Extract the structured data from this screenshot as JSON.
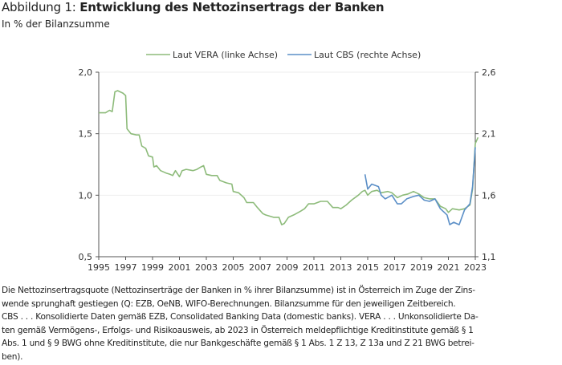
{
  "title": {
    "prefix": "Abbildung 1: ",
    "main": "Entwicklung des Nettozinsertrags der Banken"
  },
  "subtitle": "In % der Bilanzsumme",
  "chart_data": {
    "type": "line",
    "legend_position": "top",
    "grid": true,
    "x_ticks": [
      "1995",
      "1997",
      "1999",
      "2001",
      "2003",
      "2005",
      "2007",
      "2009",
      "2011",
      "2013",
      "2015",
      "2017",
      "2019",
      "2021",
      "2023"
    ],
    "xlim": [
      1995,
      2023
    ],
    "y_left": {
      "ylim": [
        0.5,
        2.0
      ],
      "ticks": [
        "0,5",
        "1,0",
        "1,5",
        "2,0"
      ]
    },
    "y_right": {
      "ylim": [
        1.1,
        2.6
      ],
      "ticks": [
        "1,1",
        "1,6",
        "2,1",
        "2,6"
      ]
    },
    "series": [
      {
        "name": "Laut VERA (linke Achse)",
        "axis": "left",
        "color": "#8dbb7a",
        "x": [
          1995.0,
          1995.5,
          1995.8,
          1996.0,
          1996.2,
          1996.4,
          1996.8,
          1997.0,
          1997.1,
          1997.4,
          1997.8,
          1998.0,
          1998.2,
          1998.5,
          1998.7,
          1999.0,
          1999.1,
          1999.3,
          1999.6,
          2000.0,
          2000.3,
          2000.5,
          2000.7,
          2001.0,
          2001.2,
          2001.5,
          2002.0,
          2002.3,
          2002.6,
          2002.8,
          2003.0,
          2003.4,
          2003.8,
          2004.0,
          2004.5,
          2004.9,
          2005.0,
          2005.4,
          2005.8,
          2006.0,
          2006.5,
          2006.8,
          2007.2,
          2007.4,
          2008.0,
          2008.4,
          2008.6,
          2008.8,
          2009.1,
          2009.5,
          2010.0,
          2010.3,
          2010.6,
          2011.0,
          2011.5,
          2012.0,
          2012.4,
          2012.8,
          2013.0,
          2013.4,
          2013.8,
          2014.3,
          2014.6,
          2014.8,
          2015.0,
          2015.3,
          2015.7,
          2016.0,
          2016.5,
          2016.8,
          2017.2,
          2017.6,
          2018.0,
          2018.4,
          2018.8,
          2019.2,
          2019.6,
          2020.0,
          2020.4,
          2020.8,
          2021.0,
          2021.3,
          2021.8,
          2022.2,
          2022.6,
          2022.8,
          2023.0,
          2023.2
        ],
        "values": [
          1.67,
          1.67,
          1.69,
          1.68,
          1.84,
          1.85,
          1.83,
          1.81,
          1.54,
          1.5,
          1.49,
          1.49,
          1.4,
          1.38,
          1.32,
          1.31,
          1.23,
          1.24,
          1.2,
          1.18,
          1.17,
          1.16,
          1.2,
          1.15,
          1.2,
          1.21,
          1.2,
          1.21,
          1.23,
          1.24,
          1.17,
          1.16,
          1.16,
          1.12,
          1.1,
          1.09,
          1.03,
          1.02,
          0.98,
          0.94,
          0.94,
          0.9,
          0.85,
          0.84,
          0.82,
          0.82,
          0.76,
          0.77,
          0.82,
          0.84,
          0.87,
          0.89,
          0.93,
          0.93,
          0.95,
          0.95,
          0.9,
          0.9,
          0.89,
          0.92,
          0.96,
          1.0,
          1.03,
          1.04,
          1.0,
          1.03,
          1.04,
          1.02,
          1.03,
          1.02,
          0.98,
          1.0,
          1.01,
          1.03,
          1.01,
          0.98,
          0.97,
          0.97,
          0.91,
          0.89,
          0.86,
          0.89,
          0.88,
          0.89,
          0.92,
          1.05,
          1.42,
          1.47
        ]
      },
      {
        "name": "Laut CBS (rechte Achse)",
        "axis": "right",
        "color": "#5b8fc7",
        "x": [
          2014.8,
          2015.0,
          2015.3,
          2015.8,
          2016.0,
          2016.3,
          2016.8,
          2017.2,
          2017.5,
          2017.9,
          2018.4,
          2018.8,
          2019.2,
          2019.6,
          2020.0,
          2020.4,
          2020.9,
          2021.1,
          2021.4,
          2021.8,
          2022.2,
          2022.6,
          2022.8,
          2023.0
        ],
        "values": [
          1.77,
          1.65,
          1.69,
          1.67,
          1.6,
          1.57,
          1.6,
          1.53,
          1.53,
          1.57,
          1.59,
          1.6,
          1.56,
          1.55,
          1.57,
          1.49,
          1.44,
          1.36,
          1.38,
          1.36,
          1.48,
          1.53,
          1.67,
          1.99
        ]
      }
    ]
  },
  "footnote": [
    "Die Nettozinsertragsquote (Nettozinserträge der Banken in % ihrer Bilanzsumme) ist in Österreich im Zuge der Zins-",
    "wende sprunghaft gestiegen (Q: EZB, OeNB, WIFO-Berechnungen. Bilanzsumme für den jeweiligen Zeitbereich.",
    "CBS . . . Konsolidierte Daten gemäß EZB, Consolidated Banking Data (domestic banks). VERA . . . Unkonsolidierte Da-",
    "ten gemäß Vermögens-, Erfolgs- und Risikoausweis, ab 2023 in Österreich meldepflichtige Kreditinstitute gemäß § 1",
    "Abs. 1 und § 9 BWG ohne Kreditinstitute, die nur Bankgeschäfte gemäß § 1 Abs. 1 Z 13, Z 13a und Z 21 BWG betrei-",
    "ben)."
  ]
}
